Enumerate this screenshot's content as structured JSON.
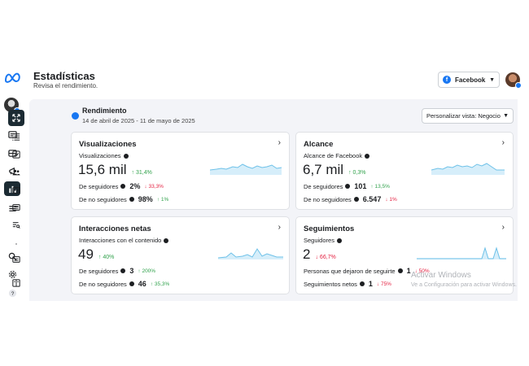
{
  "header": {
    "title": "Estadísticas",
    "subtitle": "Revisa el rendimiento.",
    "platform_select": "Facebook"
  },
  "performance": {
    "title": "Rendimiento",
    "date_range": "14 de abril de 2025 - 11 de mayo de 2025",
    "view_select": "Personalizar vista: Negocio"
  },
  "cards": {
    "views": {
      "title": "Visualizaciones",
      "metric_label": "Visualizaciones",
      "value": "15,6 mil",
      "change": "31,4%",
      "followers_label": "De seguidores",
      "followers_value": "2%",
      "followers_change": "33,3%",
      "nonfollowers_label": "De no seguidores",
      "nonfollowers_value": "98%",
      "nonfollowers_change": "1%"
    },
    "reach": {
      "title": "Alcance",
      "metric_label": "Alcance de Facebook",
      "value": "6,7 mil",
      "change": "0,3%",
      "followers_label": "De seguidores",
      "followers_value": "101",
      "followers_change": "13,5%",
      "nonfollowers_label": "De no seguidores",
      "nonfollowers_value": "6.547",
      "nonfollowers_change": "1%"
    },
    "interactions": {
      "title": "Interacciones netas",
      "metric_label": "Interacciones con el contenido",
      "value": "49",
      "change": "40%",
      "followers_label": "De seguidores",
      "followers_value": "3",
      "followers_change": "200%",
      "nonfollowers_label": "De no seguidores",
      "nonfollowers_value": "46",
      "nonfollowers_change": "35,3%"
    },
    "follows": {
      "title": "Seguimientos",
      "metric_label": "Seguidores",
      "value": "2",
      "change": "66,7%",
      "unfollow_label": "Personas que dejaron de seguirte",
      "unfollow_value": "1",
      "unfollow_change": "50%",
      "net_label": "Seguimientos netos",
      "net_value": "1",
      "net_change": "75%"
    }
  },
  "watermark": {
    "line1": "Activar Windows",
    "line2": "Ve a Configuración para activar Windows."
  },
  "colors": {
    "accent": "#1877f2",
    "spark_line": "#6ec1e8",
    "spark_fill": "#d6eefa",
    "up": "#31a24c",
    "down": "#e41e3f"
  }
}
